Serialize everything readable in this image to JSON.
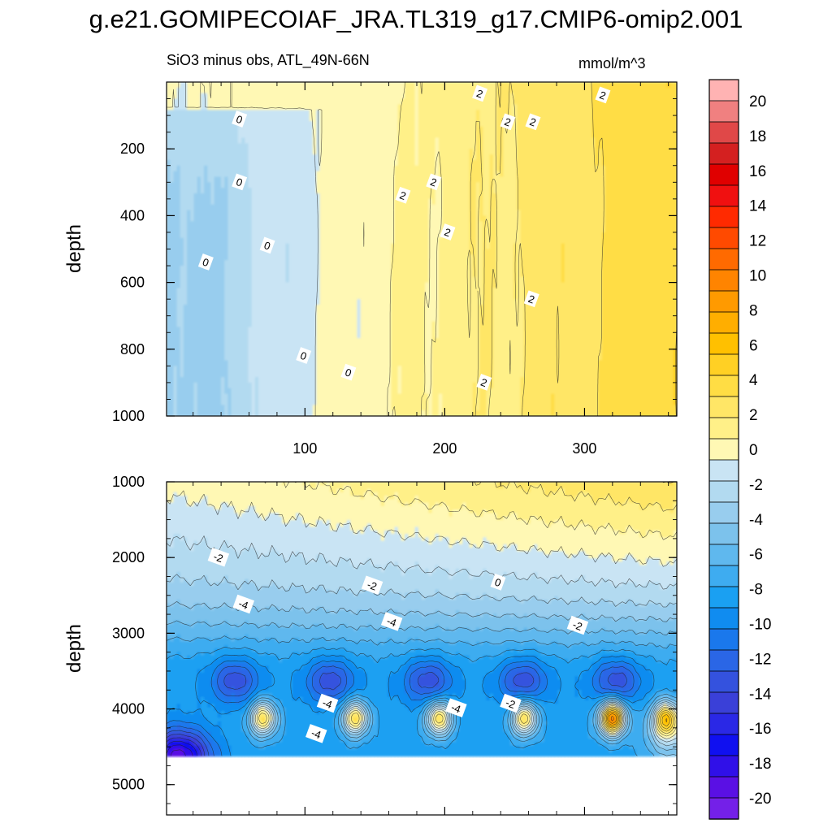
{
  "title": "g.e21.GOMIPECOIAF_JRA.TL319_g17.CMIP6-omip2.001",
  "chart_data": {
    "type": "contour",
    "variable": "SiO3 minus obs, ATL_49N-66N",
    "units": "mmol/m^3",
    "ylabel": "depth",
    "xlabel": "",
    "x_range": [
      1,
      366
    ],
    "x_ticks": [
      "100",
      "200",
      "300"
    ],
    "upper_panel": {
      "depth_range": [
        0,
        1000
      ],
      "y_ticks": [
        "200",
        "400",
        "600",
        "800",
        "1000"
      ],
      "contour_labels": [
        {
          "text": "0",
          "x": 53,
          "depth": 112
        },
        {
          "text": "0",
          "x": 53,
          "depth": 300
        },
        {
          "text": "0",
          "x": 29,
          "depth": 540
        },
        {
          "text": "0",
          "x": 73,
          "depth": 490
        },
        {
          "text": "0",
          "x": 99,
          "depth": 820
        },
        {
          "text": "0",
          "x": 131,
          "depth": 870
        },
        {
          "text": "2",
          "x": 225,
          "depth": 35
        },
        {
          "text": "2",
          "x": 245,
          "depth": 120
        },
        {
          "text": "2",
          "x": 263,
          "depth": 120
        },
        {
          "text": "2",
          "x": 313,
          "depth": 40
        },
        {
          "text": "2",
          "x": 170,
          "depth": 340
        },
        {
          "text": "2",
          "x": 192,
          "depth": 300
        },
        {
          "text": "2",
          "x": 202,
          "depth": 450
        },
        {
          "text": "2",
          "x": 262,
          "depth": 650
        },
        {
          "text": "2",
          "x": 228,
          "depth": 900
        }
      ]
    },
    "lower_panel": {
      "depth_range": [
        1000,
        5400
      ],
      "y_ticks": [
        "1000",
        "2000",
        "3000",
        "4000",
        "5000"
      ],
      "ocean_floor_depth": 4620,
      "contour_labels": [
        {
          "text": "-2",
          "x": 38,
          "depth": 2000
        },
        {
          "text": "-2",
          "x": 148,
          "depth": 2370
        },
        {
          "text": "0",
          "x": 238,
          "depth": 2330
        },
        {
          "text": "-4",
          "x": 56,
          "depth": 2620
        },
        {
          "text": "-4",
          "x": 162,
          "depth": 2850
        },
        {
          "text": "-2",
          "x": 295,
          "depth": 2900
        },
        {
          "text": "-4",
          "x": 116,
          "depth": 3930
        },
        {
          "text": "-4",
          "x": 208,
          "depth": 3990
        },
        {
          "text": "-2",
          "x": 247,
          "depth": 3930
        },
        {
          "text": "-4",
          "x": 108,
          "depth": 4330
        }
      ],
      "minima_columns": [
        50,
        118,
        188,
        256,
        323
      ],
      "maxima_columns": [
        70,
        136,
        196,
        257,
        320,
        358
      ]
    },
    "colorbar": {
      "levels": [
        "20",
        "18",
        "16",
        "14",
        "12",
        "10",
        "8",
        "6",
        "4",
        "2",
        "0",
        "-2",
        "-4",
        "-6",
        "-8",
        "-10",
        "-12",
        "-14",
        "-16",
        "-18",
        "-20"
      ],
      "colors": [
        "#ffb3b3",
        "#f08080",
        "#e04848",
        "#d42020",
        "#e00000",
        "#f01010",
        "#ff2a00",
        "#ff4a00",
        "#ff6a00",
        "#ff8400",
        "#ff9a00",
        "#ffae00",
        "#ffc000",
        "#ffd024",
        "#ffdd44",
        "#ffe666",
        "#fff088",
        "#fff8b4",
        "#c9e4f4",
        "#b2daf0",
        "#98cdee",
        "#7cc2ec",
        "#5fb8ee",
        "#3eacf0",
        "#1aa0f2",
        "#108cf0",
        "#1a78ec",
        "#2a66e6",
        "#3452de",
        "#3a40d8",
        "#2a28e6",
        "#1010f0",
        "#3010e8",
        "#5a10e4",
        "#7420e8"
      ]
    }
  }
}
